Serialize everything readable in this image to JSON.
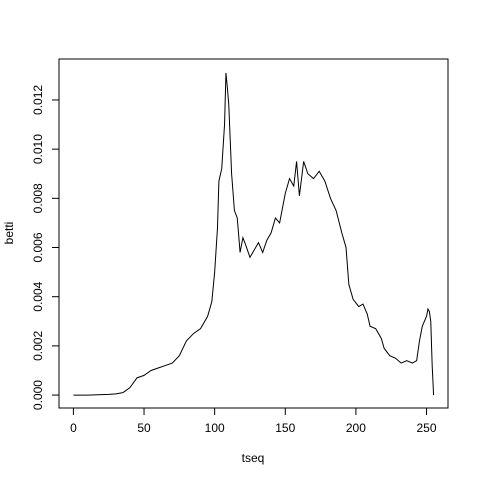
{
  "chart_data": {
    "type": "line",
    "xlabel": "tseq",
    "ylabel": "betti",
    "x": [
      0,
      10,
      20,
      25,
      30,
      35,
      40,
      45,
      50,
      55,
      60,
      65,
      70,
      75,
      80,
      85,
      90,
      95,
      98,
      100,
      102,
      103,
      105,
      107,
      108,
      109,
      110,
      112,
      114,
      116,
      118,
      120,
      122,
      125,
      128,
      131,
      134,
      137,
      140,
      143,
      146,
      150,
      153,
      156,
      158,
      160,
      163,
      166,
      170,
      174,
      178,
      182,
      186,
      190,
      193,
      195,
      198,
      202,
      205,
      208,
      210,
      214,
      218,
      220,
      224,
      228,
      232,
      236,
      240,
      243,
      245,
      247,
      250,
      251,
      252,
      253,
      254,
      255
    ],
    "series": [
      {
        "name": "betti",
        "color": "#000000",
        "values": [
          0,
          0,
          2e-05,
          3e-05,
          5e-05,
          0.0001,
          0.0003,
          0.0007,
          0.0008,
          0.001,
          0.0011,
          0.0012,
          0.0013,
          0.0016,
          0.0022,
          0.0025,
          0.0027,
          0.0032,
          0.0038,
          0.005,
          0.0068,
          0.0087,
          0.0092,
          0.011,
          0.0131,
          0.0125,
          0.0118,
          0.009,
          0.0075,
          0.0072,
          0.0058,
          0.0064,
          0.0061,
          0.0056,
          0.0059,
          0.0062,
          0.0058,
          0.0063,
          0.0066,
          0.0072,
          0.007,
          0.0082,
          0.0088,
          0.0085,
          0.0095,
          0.0081,
          0.0095,
          0.009,
          0.0088,
          0.0091,
          0.0087,
          0.008,
          0.0075,
          0.0066,
          0.006,
          0.0045,
          0.0039,
          0.0036,
          0.0037,
          0.0033,
          0.0028,
          0.0027,
          0.0023,
          0.0019,
          0.0016,
          0.0015,
          0.0013,
          0.0014,
          0.0013,
          0.0014,
          0.0022,
          0.0028,
          0.0032,
          0.0035,
          0.0034,
          0.003,
          0.0012,
          0
        ]
      }
    ],
    "xlim": [
      -10.2,
      265.2
    ],
    "xticks": [
      0,
      50,
      100,
      150,
      200,
      250
    ],
    "ylim": [
      -0.000526,
      0.013666
    ],
    "yticks": [
      {
        "value": 0,
        "label": "0.000"
      },
      {
        "value": 0.002,
        "label": "0.002"
      },
      {
        "value": 0.004,
        "label": "0.004"
      },
      {
        "value": 0.006,
        "label": "0.006"
      },
      {
        "value": 0.008,
        "label": "0.008"
      },
      {
        "value": 0.01,
        "label": "0.010"
      },
      {
        "value": 0.012,
        "label": "0.012"
      }
    ]
  }
}
